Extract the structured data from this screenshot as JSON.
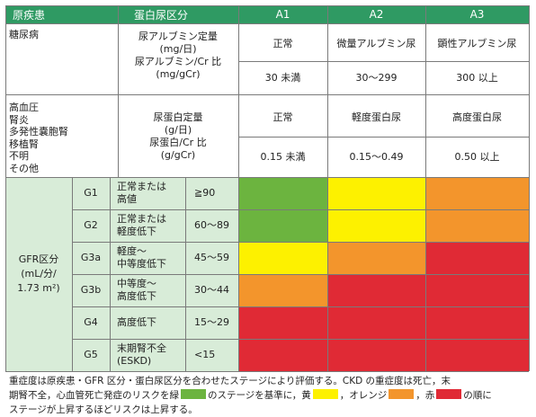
{
  "header": {
    "disease": "原疾患",
    "proteinuria": "蛋白尿区分",
    "a1": "A1",
    "a2": "A2",
    "a3": "A3"
  },
  "diabetes": {
    "label": "糖尿病",
    "measure_lines": [
      "尿アルブミン定量",
      "(mg/日)",
      "尿アルブミン/Cr 比",
      "(mg/gCr)"
    ],
    "a1_name": "正常",
    "a2_name": "微量アルブミン尿",
    "a3_name": "顕性アルブミン尿",
    "a1_value": "30 未満",
    "a2_value": "30〜299",
    "a3_value": "300 以上"
  },
  "other": {
    "label_lines": [
      "高血圧",
      "腎炎",
      "多発性嚢胞腎",
      "移植腎",
      "不明",
      "その他"
    ],
    "measure_lines": [
      "尿蛋白定量",
      "(g/日)",
      "尿蛋白/Cr 比",
      "(g/gCr)"
    ],
    "a1_name": "正常",
    "a2_name": "軽度蛋白尿",
    "a3_name": "高度蛋白尿",
    "a1_value": "0.15 未満",
    "a2_value": "0.15〜0.49",
    "a3_value": "0.50 以上"
  },
  "gfr": {
    "label_lines": [
      "GFR区分",
      "(mL/分/",
      "1.73 m²)"
    ],
    "rows": [
      {
        "stage": "G1",
        "desc_lines": [
          "正常または",
          "高値"
        ],
        "range": "≧90",
        "risk": [
          "green",
          "yellow",
          "orange"
        ]
      },
      {
        "stage": "G2",
        "desc_lines": [
          "正常または",
          "軽度低下"
        ],
        "range": "60〜89",
        "risk": [
          "green",
          "yellow",
          "orange"
        ]
      },
      {
        "stage": "G3a",
        "desc_lines": [
          "軽度〜",
          "中等度低下"
        ],
        "range": "45〜59",
        "risk": [
          "yellow",
          "orange",
          "red"
        ]
      },
      {
        "stage": "G3b",
        "desc_lines": [
          "中等度〜",
          "高度低下"
        ],
        "range": "30〜44",
        "risk": [
          "orange",
          "red",
          "red"
        ]
      },
      {
        "stage": "G4",
        "desc_lines": [
          "高度低下"
        ],
        "range": "15〜29",
        "risk": [
          "red",
          "red",
          "red"
        ]
      },
      {
        "stage": "G5",
        "desc_lines": [
          "末期腎不全",
          "(ESKD)"
        ],
        "range": "<15",
        "risk": [
          "red",
          "red",
          "red"
        ]
      }
    ]
  },
  "colors": {
    "header_bg": "#2f9a63",
    "green": "#6cb43f",
    "yellow": "#fdf100",
    "orange": "#f3952c",
    "red": "#e02a35",
    "gfr_bg": "#d8ecd8"
  },
  "footnote": {
    "line1": "重症度は原疾患・GFR 区分・蛋白尿区分を合わせたステージにより評価する。CKD の重症度は死亡，末",
    "line2_a": "期腎不全，心血管死亡発症のリスクを緑",
    "line2_b": "のステージを基準に，黄",
    "line2_c": "，オレンジ",
    "line2_d": "，赤",
    "line2_e": "の順に",
    "line3": "ステージが上昇するほどリスクは上昇する。"
  }
}
